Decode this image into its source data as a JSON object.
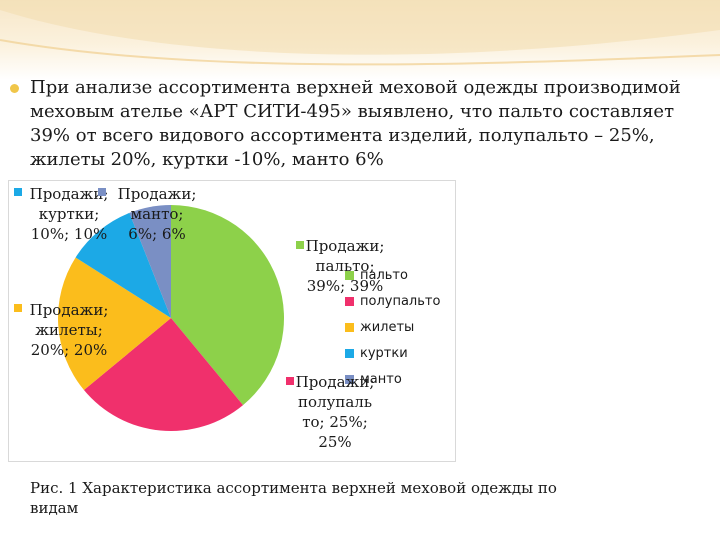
{
  "slide": {
    "bullet_text": "При анализе ассортимента верхней меховой одежды производимой меховым ателье «АРТ СИТИ-495» выявлено, что пальто составляет 39% от всего видового ассортимента изделий, полупальто – 25%, жилеты 20%, куртки -10%, манто  6%",
    "caption": "Рис. 1 Характеристика ассортимента верхней меховой одежды по видам"
  },
  "chart_data": {
    "type": "pie",
    "title": "",
    "slices": [
      {
        "name": "пальто",
        "value": 39,
        "color": "#8dd14a",
        "label": "Продажи;\nпальто;\n39%; 39%"
      },
      {
        "name": "полупальто",
        "value": 25,
        "color": "#f0306c",
        "label": "Продажи;\nполупаль\nто; 25%;\n25%"
      },
      {
        "name": "жилеты",
        "value": 20,
        "color": "#fbbd1c",
        "label": "Продажи;\nжилеты;\n20%; 20%"
      },
      {
        "name": "куртки",
        "value": 10,
        "color": "#1ca9e6",
        "label": "Продажи;\nкуртки;\n10%; 10%"
      },
      {
        "name": "манто",
        "value": 6,
        "color": "#7a8fc4",
        "label": "Продажи;\nманто;\n6%; 6%"
      }
    ],
    "legend": {
      "position": "right",
      "entries": [
        "пальто",
        "полупальто",
        "жилеты",
        "куртки",
        "манто"
      ]
    }
  }
}
